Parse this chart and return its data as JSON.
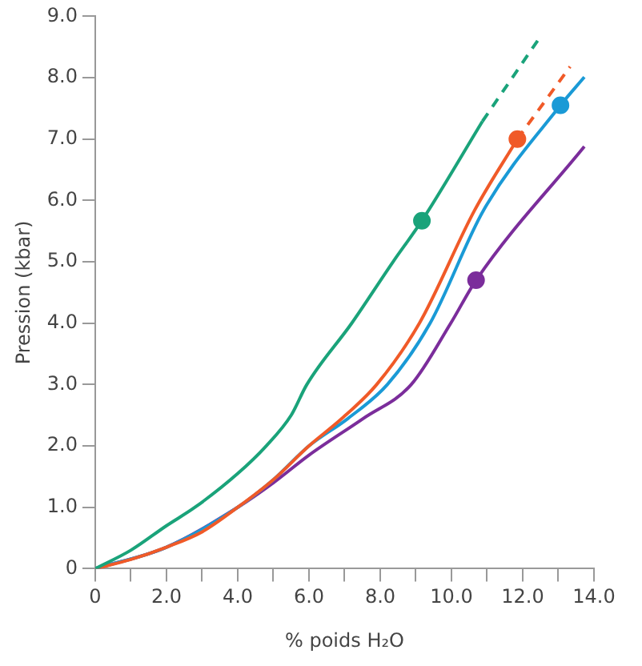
{
  "chart_data": {
    "type": "line",
    "xlabel": "% poids H₂O",
    "ylabel": "Pression (kbar)",
    "xlim": [
      0,
      14
    ],
    "ylim": [
      0,
      9
    ],
    "xticks": [
      {
        "value": 0,
        "label": "0"
      },
      {
        "value": 1,
        "label": null
      },
      {
        "value": 2,
        "label": "2.0"
      },
      {
        "value": 3,
        "label": null
      },
      {
        "value": 4,
        "label": "4.0"
      },
      {
        "value": 5,
        "label": null
      },
      {
        "value": 6,
        "label": "6.0"
      },
      {
        "value": 7,
        "label": null
      },
      {
        "value": 8,
        "label": "8.0"
      },
      {
        "value": 9,
        "label": null
      },
      {
        "value": 10,
        "label": "10.0"
      },
      {
        "value": 11,
        "label": null
      },
      {
        "value": 12,
        "label": "12.0"
      },
      {
        "value": 13,
        "label": null
      },
      {
        "value": 14,
        "label": "14.0"
      }
    ],
    "yticks": [
      {
        "value": 0,
        "label": "0"
      },
      {
        "value": 1,
        "label": "1.0"
      },
      {
        "value": 2,
        "label": "2.0"
      },
      {
        "value": 3,
        "label": "3.0"
      },
      {
        "value": 4,
        "label": "4.0"
      },
      {
        "value": 5,
        "label": "5.0"
      },
      {
        "value": 6,
        "label": "6.0"
      },
      {
        "value": 7,
        "label": "7.0"
      },
      {
        "value": 8,
        "label": "8.0"
      },
      {
        "value": 9,
        "label": "9.0"
      }
    ],
    "grid": false,
    "legend": false,
    "marker": "none",
    "line_style": "solid",
    "series": [
      {
        "color": "#1aa37a",
        "x": [
          0,
          1,
          2,
          2.8,
          4,
          4.8,
          5.5,
          5.94,
          7.2,
          8.36,
          9.17,
          10.87
        ],
        "values": [
          0,
          0.3,
          0.7,
          1.0,
          1.55,
          2.0,
          2.5,
          3.0,
          4.0,
          5.0,
          5.67,
          7.29
        ]
      },
      {
        "color": "#1aa37a",
        "line_style": "dashed",
        "x": [
          10.87,
          12.52
        ],
        "values": [
          7.29,
          8.69
        ]
      },
      {
        "color": "#f05a28",
        "x": [
          0,
          1,
          2,
          3,
          4,
          5,
          6,
          6.93,
          7.9,
          9.1,
          10.65,
          11.85
        ],
        "values": [
          0,
          0.15,
          0.35,
          0.6,
          1.0,
          1.45,
          2.0,
          2.45,
          3.0,
          4.0,
          5.84,
          7.0
        ]
      },
      {
        "color": "#f05a28",
        "line_style": "dashed",
        "x": [
          11.85,
          13.33
        ],
        "values": [
          7.0,
          8.18
        ]
      },
      {
        "color": "#1a9ad6",
        "x": [
          0,
          2,
          4,
          5,
          6,
          7.1,
          8.2,
          9.4,
          10.9,
          13.06,
          13.73
        ],
        "values": [
          0,
          0.35,
          1.0,
          1.45,
          2.0,
          2.45,
          3.0,
          4.0,
          5.84,
          7.55,
          8.01
        ]
      },
      {
        "color": "#7b2d9b",
        "x": [
          0,
          2,
          4,
          5,
          6,
          7.53,
          8.87,
          9.98,
          10.69,
          13.73
        ],
        "values": [
          0,
          0.35,
          1.0,
          1.4,
          1.85,
          2.45,
          3.0,
          4.0,
          4.7,
          6.88
        ]
      },
      {
        "type": "scatter",
        "marker": "circle",
        "color": "#1aa37a",
        "x": [
          9.17
        ],
        "values": [
          5.67
        ]
      },
      {
        "type": "scatter",
        "marker": "circle",
        "color": "#f05a28",
        "x": [
          11.85
        ],
        "values": [
          7.0
        ]
      },
      {
        "type": "scatter",
        "marker": "circle",
        "color": "#1a9ad6",
        "x": [
          13.06
        ],
        "values": [
          7.55
        ]
      },
      {
        "type": "scatter",
        "marker": "circle",
        "color": "#7b2d9b",
        "x": [
          10.69
        ],
        "values": [
          4.7
        ]
      }
    ]
  }
}
